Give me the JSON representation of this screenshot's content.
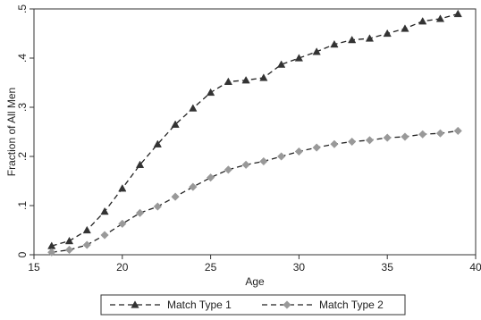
{
  "chart_data": {
    "type": "line",
    "xlabel": "Age",
    "ylabel": "Fraction of All Men",
    "xlim": [
      15,
      40
    ],
    "ylim": [
      0,
      0.5
    ],
    "xticks": [
      15,
      20,
      25,
      30,
      35,
      40
    ],
    "yticks": [
      0,
      0.1,
      0.2,
      0.3,
      0.4,
      0.5
    ],
    "xtick_labels": [
      "15",
      "20",
      "25",
      "30",
      "35",
      "40"
    ],
    "ytick_labels": [
      "0",
      ".1",
      ".2",
      ".3",
      ".4",
      ".5"
    ],
    "grid": false,
    "legend_position": "bottom",
    "x": [
      16,
      17,
      18,
      19,
      20,
      21,
      22,
      23,
      24,
      25,
      26,
      27,
      28,
      29,
      30,
      31,
      32,
      33,
      34,
      35,
      36,
      37,
      38,
      39
    ],
    "series": [
      {
        "name": "Match Type 1",
        "marker": "triangle",
        "color": "#333333",
        "values": [
          0.018,
          0.028,
          0.05,
          0.088,
          0.135,
          0.183,
          0.225,
          0.265,
          0.298,
          0.33,
          0.352,
          0.355,
          0.36,
          0.387,
          0.4,
          0.413,
          0.428,
          0.437,
          0.44,
          0.45,
          0.46,
          0.475,
          0.48,
          0.49
        ]
      },
      {
        "name": "Match Type 2",
        "marker": "diamond",
        "color": "#999999",
        "values": [
          0.005,
          0.01,
          0.02,
          0.04,
          0.063,
          0.085,
          0.098,
          0.118,
          0.138,
          0.157,
          0.173,
          0.183,
          0.19,
          0.2,
          0.21,
          0.218,
          0.225,
          0.23,
          0.233,
          0.238,
          0.24,
          0.245,
          0.247,
          0.252
        ]
      }
    ]
  }
}
